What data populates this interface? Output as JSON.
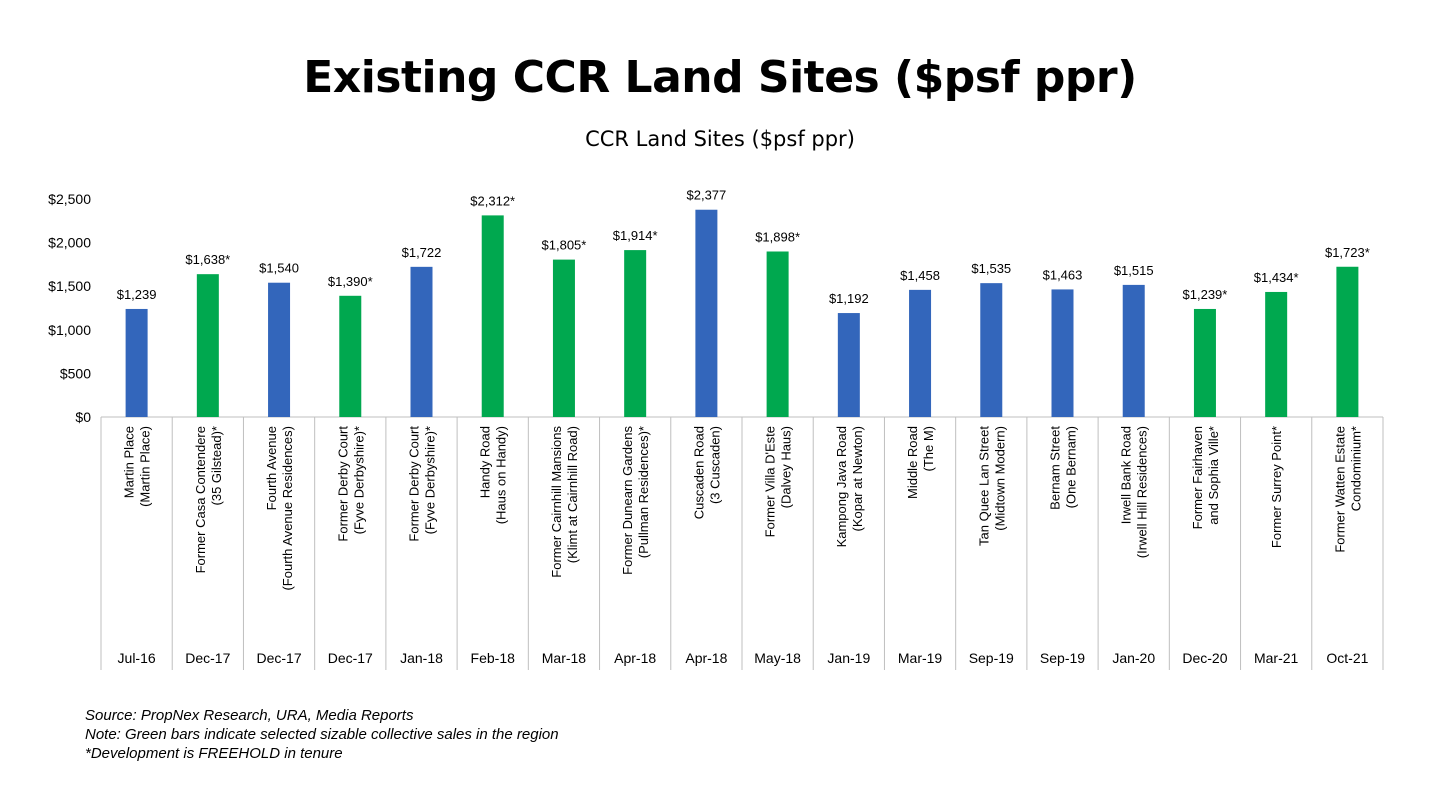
{
  "header": {
    "title": "Existing CCR Land Sites ($psf ppr)"
  },
  "chart_data": {
    "type": "bar",
    "title": "CCR Land Sites ($psf ppr)",
    "ylim": [
      0,
      2500
    ],
    "y_ticks": [
      "$0",
      "$500",
      "$1,000",
      "$1,500",
      "$2,000",
      "$2,500"
    ],
    "grid": false,
    "colors": {
      "blue": "#3366bb",
      "green": "#00a84f"
    },
    "categories": [
      {
        "name": [
          "Martin Place",
          "(Martin Place)"
        ],
        "date": "Jul-16",
        "value": 1239,
        "label": "$1,239",
        "color": "blue"
      },
      {
        "name": [
          "Former Casa Contendere",
          "(35 Gilstead)*"
        ],
        "date": "Dec-17",
        "value": 1638,
        "label": "$1,638*",
        "color": "green"
      },
      {
        "name": [
          "Fourth Avenue",
          "(Fourth Avenue Residences)"
        ],
        "date": "Dec-17",
        "value": 1540,
        "label": "$1,540",
        "color": "blue"
      },
      {
        "name": [
          "Former Derby Court",
          "(Fyve Derbyshire)*"
        ],
        "date": "Dec-17",
        "value": 1390,
        "label": "$1,390*",
        "color": "green"
      },
      {
        "name": [
          "Former Derby Court",
          "(Fyve Derbyshire)*"
        ],
        "date": "Jan-18",
        "value": 1722,
        "label": "$1,722",
        "color": "blue"
      },
      {
        "name": [
          "Handy Road",
          "(Haus on Handy)"
        ],
        "date": "Feb-18",
        "value": 2312,
        "label": "$2,312*",
        "color": "green"
      },
      {
        "name": [
          "Former Cairnhill Mansions",
          "(Klimt at Cairnhill Road)"
        ],
        "date": "Mar-18",
        "value": 1805,
        "label": "$1,805*",
        "color": "green"
      },
      {
        "name": [
          "Former Dunearn Gardens",
          "(Pullman Residences)*"
        ],
        "date": "Apr-18",
        "value": 1914,
        "label": "$1,914*",
        "color": "green"
      },
      {
        "name": [
          "Cuscaden Road",
          "(3 Cuscaden)"
        ],
        "date": "Apr-18",
        "value": 2377,
        "label": "$2,377",
        "color": "blue"
      },
      {
        "name": [
          "Former Villa D'Este",
          "(Dalvey Haus)"
        ],
        "date": "May-18",
        "value": 1898,
        "label": "$1,898*",
        "color": "green"
      },
      {
        "name": [
          "Kampong Java Road",
          "(Kopar at Newton)"
        ],
        "date": "Jan-19",
        "value": 1192,
        "label": "$1,192",
        "color": "blue"
      },
      {
        "name": [
          "Middle Road",
          "(The M)"
        ],
        "date": "Mar-19",
        "value": 1458,
        "label": "$1,458",
        "color": "blue"
      },
      {
        "name": [
          "Tan Quee Lan Street",
          "(Midtown Modern)"
        ],
        "date": "Sep-19",
        "value": 1535,
        "label": "$1,535",
        "color": "blue"
      },
      {
        "name": [
          "Bernam Street",
          "(One Bernam)"
        ],
        "date": "Sep-19",
        "value": 1463,
        "label": "$1,463",
        "color": "blue"
      },
      {
        "name": [
          "Irwell Bank Road",
          "(Irwell Hill Residences)"
        ],
        "date": "Jan-20",
        "value": 1515,
        "label": "$1,515",
        "color": "blue"
      },
      {
        "name": [
          "Former Fairhaven",
          "and Sophia Ville*"
        ],
        "date": "Dec-20",
        "value": 1239,
        "label": "$1,239*",
        "color": "green"
      },
      {
        "name": [
          "Former Surrey Point*"
        ],
        "date": "Mar-21",
        "value": 1434,
        "label": "$1,434*",
        "color": "green"
      },
      {
        "name": [
          "Former Watten Estate",
          "Condominium*"
        ],
        "date": "Oct-21",
        "value": 1723,
        "label": "$1,723*",
        "color": "green"
      }
    ]
  },
  "notes": {
    "source": "Source: PropNex Research, URA, Media Reports",
    "note": "Note: Green bars indicate selected sizable collective sales in the region",
    "freehold": "*Development is FREEHOLD in tenure"
  }
}
